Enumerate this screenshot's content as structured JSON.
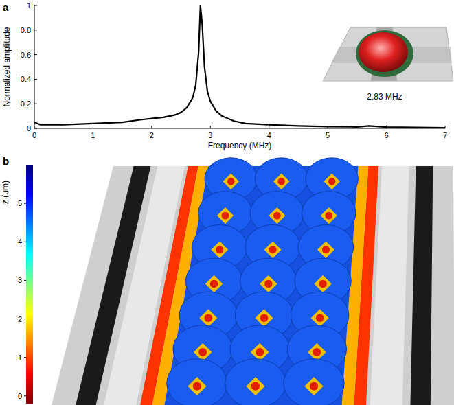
{
  "chart_data": [
    {
      "type": "line",
      "title": "a",
      "x_label": "Frequency (MHz)",
      "y_label": "Normalized amplitude",
      "x": [
        0,
        0.05,
        0.1,
        0.3,
        0.5,
        1,
        1.5,
        1.8,
        2,
        2.2,
        2.4,
        2.5,
        2.6,
        2.7,
        2.75,
        2.8,
        2.83,
        2.86,
        2.9,
        2.95,
        3,
        3.1,
        3.2,
        3.4,
        3.6,
        4,
        4.5,
        5,
        5.5,
        5.7,
        6,
        6.5,
        7
      ],
      "values": [
        0.05,
        0.04,
        0.03,
        0.03,
        0.03,
        0.04,
        0.05,
        0.07,
        0.08,
        0.09,
        0.11,
        0.13,
        0.17,
        0.25,
        0.35,
        0.62,
        1.0,
        0.85,
        0.5,
        0.3,
        0.22,
        0.14,
        0.1,
        0.06,
        0.04,
        0.03,
        0.02,
        0.015,
        0.012,
        0.02,
        0.01,
        0.008,
        0.005
      ],
      "color": "#000000",
      "xlim": [
        0,
        7
      ],
      "xticks": [
        0,
        1,
        2,
        3,
        4,
        5,
        6,
        7
      ],
      "ylim": [
        0,
        1
      ],
      "yticks": [
        0,
        0.2,
        0.4,
        0.6,
        0.8,
        1
      ],
      "annotations": [
        "2.83 MHz"
      ]
    },
    {
      "type": "surface",
      "title": "b",
      "colorbar_label": "z (μm)",
      "colorbar_range": [
        -0.2,
        6.0
      ],
      "colorbar_ticks": [
        0,
        1,
        2,
        3,
        4,
        5
      ]
    }
  ]
}
